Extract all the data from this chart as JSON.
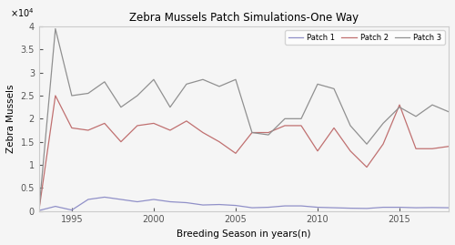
{
  "title": "Zebra Mussels Patch Simulations-One Way",
  "xlabel": "Breeding Season in years(n)",
  "ylabel": "Zebra Mussels",
  "years": [
    1993,
    1994,
    1995,
    1996,
    1997,
    1998,
    1999,
    2000,
    2001,
    2002,
    2003,
    2004,
    2005,
    2006,
    2007,
    2008,
    2009,
    2010,
    2011,
    2012,
    2013,
    2014,
    2015,
    2016,
    2017,
    2018
  ],
  "patch1": [
    100,
    1000,
    200,
    2500,
    3000,
    2500,
    2000,
    2500,
    2000,
    1800,
    1300,
    1400,
    1200,
    700,
    800,
    1100,
    1100,
    800,
    700,
    600,
    550,
    800,
    800,
    700,
    750,
    700
  ],
  "patch2": [
    200,
    25000,
    18000,
    17500,
    19000,
    15000,
    18500,
    19000,
    17500,
    19500,
    17000,
    15000,
    12500,
    17000,
    17000,
    18500,
    18500,
    13000,
    18000,
    13000,
    9500,
    14500,
    23000,
    13500,
    13500,
    14000
  ],
  "patch3": [
    200,
    39500,
    25000,
    25500,
    28000,
    22500,
    25000,
    28500,
    22500,
    27500,
    28500,
    27000,
    28500,
    17000,
    16500,
    20000,
    20000,
    27500,
    26500,
    18500,
    14500,
    19000,
    22500,
    20500,
    23000,
    21500
  ],
  "patch1_color": "#9090c8",
  "patch2_color": "#c07070",
  "patch3_color": "#909090",
  "ylim": [
    0,
    40000
  ],
  "ytick_vals": [
    0,
    5000,
    10000,
    15000,
    20000,
    25000,
    30000,
    35000,
    40000
  ],
  "ytick_labels": [
    "0",
    "0.5",
    "1",
    "1.5",
    "2",
    "2.5",
    "3",
    "3.5",
    "4"
  ],
  "xticks": [
    1995,
    2000,
    2005,
    2010,
    2015
  ],
  "xlim": [
    1993,
    2018
  ],
  "legend_labels": [
    "Patch 1",
    "Patch 2",
    "Patch 3"
  ],
  "bg_color": "#f5f5f5",
  "linewidth": 0.9
}
